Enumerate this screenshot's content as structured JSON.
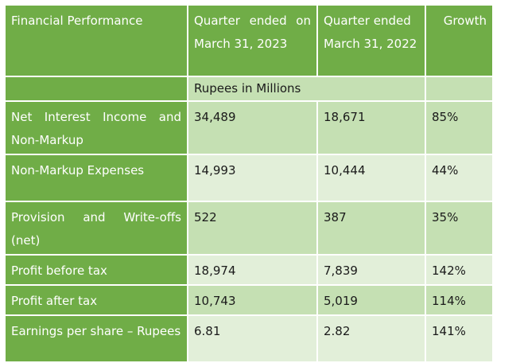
{
  "header": {
    "col1": "Financial Performance",
    "col2": "Quarter ended on March 31, 2023",
    "col3": "Quarter ended March 31, 2022",
    "col4": "Growth"
  },
  "units": "Rupees in Millions",
  "rows": [
    {
      "label": "Net Interest Income and Non-Markup",
      "q2023": "34,489",
      "q2022": "18,671",
      "growth": "85%"
    },
    {
      "label": "Non-Markup Expenses",
      "q2023": "14,993",
      "q2022": "10,444",
      "growth": "44%"
    },
    {
      "label": "Provision and Write-offs (net)",
      "q2023": "522",
      "q2022": "387",
      "growth": "35%"
    },
    {
      "label": "Profit before tax",
      "q2023": "18,974",
      "q2022": "7,839",
      "growth": "142%"
    },
    {
      "label": "Profit after tax",
      "q2023": "10,743",
      "q2022": "5,019",
      "growth": "114%"
    },
    {
      "label": "Earnings per share – Rupees",
      "q2023": "6.81",
      "q2022": "2.82",
      "growth": "141%"
    }
  ],
  "colors": {
    "header_green": "#70ad47",
    "light_green": "#c5e0b3",
    "pale_green": "#e2efd9"
  }
}
